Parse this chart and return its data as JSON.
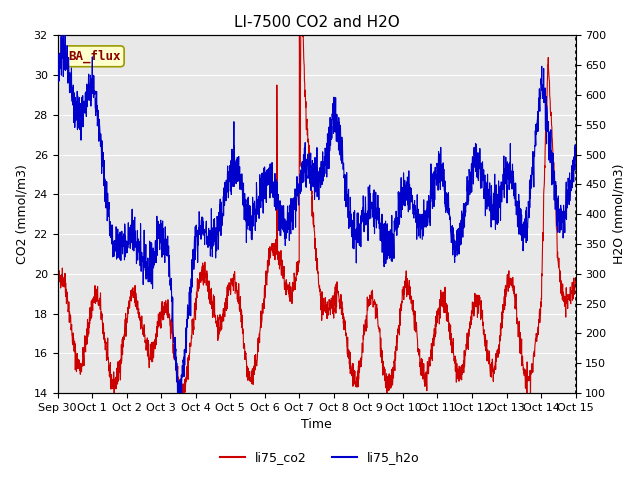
{
  "title": "LI-7500 CO2 and H2O",
  "xlabel": "Time",
  "ylabel_left": "CO2 (mmol/m3)",
  "ylabel_right": "H2O (mmol/m3)",
  "ylim_left": [
    14,
    32
  ],
  "ylim_right": [
    100,
    700
  ],
  "yticks_left": [
    14,
    16,
    18,
    20,
    22,
    24,
    26,
    28,
    30,
    32
  ],
  "yticks_right": [
    100,
    150,
    200,
    250,
    300,
    350,
    400,
    450,
    500,
    550,
    600,
    650,
    700
  ],
  "xtick_labels": [
    "Sep 30",
    "Oct 1",
    "Oct 2",
    "Oct 3",
    "Oct 4",
    "Oct 5",
    "Oct 6",
    "Oct 7",
    "Oct 8",
    "Oct 9",
    "Oct 10",
    "Oct 11",
    "Oct 12",
    "Oct 13",
    "Oct 14",
    "Oct 15"
  ],
  "legend_labels": [
    "li75_co2",
    "li75_h2o"
  ],
  "co2_color": "#cc0000",
  "h2o_color": "#0000cc",
  "background_color": "#ffffff",
  "plot_bg_color": "#e8e8e8",
  "grid_color": "#ffffff",
  "annotation_text": "BA_flux",
  "annotation_bg": "#ffffcc",
  "annotation_border": "#999900",
  "title_fontsize": 11,
  "axis_fontsize": 9,
  "tick_fontsize": 8
}
